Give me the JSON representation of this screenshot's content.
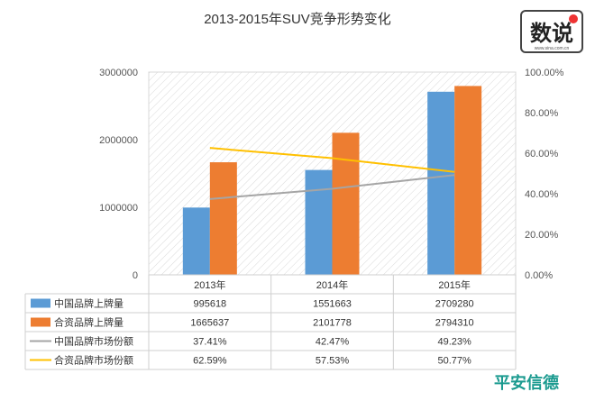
{
  "chart_data": {
    "type": "bar",
    "title": "2013-2015年SUV竞争形势变化",
    "categories": [
      "2013年",
      "2014年",
      "2015年"
    ],
    "y_left": {
      "ticks": [
        "0",
        "1000000",
        "2000000",
        "3000000"
      ],
      "ylim": [
        0,
        3000000
      ]
    },
    "y_right": {
      "ticks": [
        "0.00%",
        "20.00%",
        "40.00%",
        "60.00%",
        "80.00%",
        "100.00%"
      ],
      "ylim": [
        0,
        1
      ]
    },
    "grid": "diagonal hatched plot background",
    "series": [
      {
        "name": "中国品牌上牌量",
        "kind": "bar",
        "axis": "left",
        "color": "#5B9BD5",
        "values": [
          995618,
          1551663,
          2709280
        ],
        "labels": [
          "995618",
          "1551663",
          "2709280"
        ]
      },
      {
        "name": "合资品牌上牌量",
        "kind": "bar",
        "axis": "left",
        "color": "#ED7D31",
        "values": [
          1665637,
          2101778,
          2794310
        ],
        "labels": [
          "1665637",
          "2101778",
          "2794310"
        ]
      },
      {
        "name": "中国品牌市场份额",
        "kind": "line",
        "axis": "right",
        "color": "#A5A5A5",
        "values": [
          0.3741,
          0.4247,
          0.4923
        ],
        "labels": [
          "37.41%",
          "42.47%",
          "49.23%"
        ]
      },
      {
        "name": "合资品牌市场份额",
        "kind": "line",
        "axis": "right",
        "color": "#FFC000",
        "values": [
          0.6259,
          0.5753,
          0.5077
        ],
        "labels": [
          "62.59%",
          "57.53%",
          "50.77%"
        ]
      }
    ],
    "data_table": "below chart",
    "legend": "embedded in data table"
  },
  "logo": {
    "text": "数说",
    "small_text": "www.sina.com.cn"
  },
  "watermark": {
    "text": "平安信德",
    "color": "#1a9a8f"
  }
}
